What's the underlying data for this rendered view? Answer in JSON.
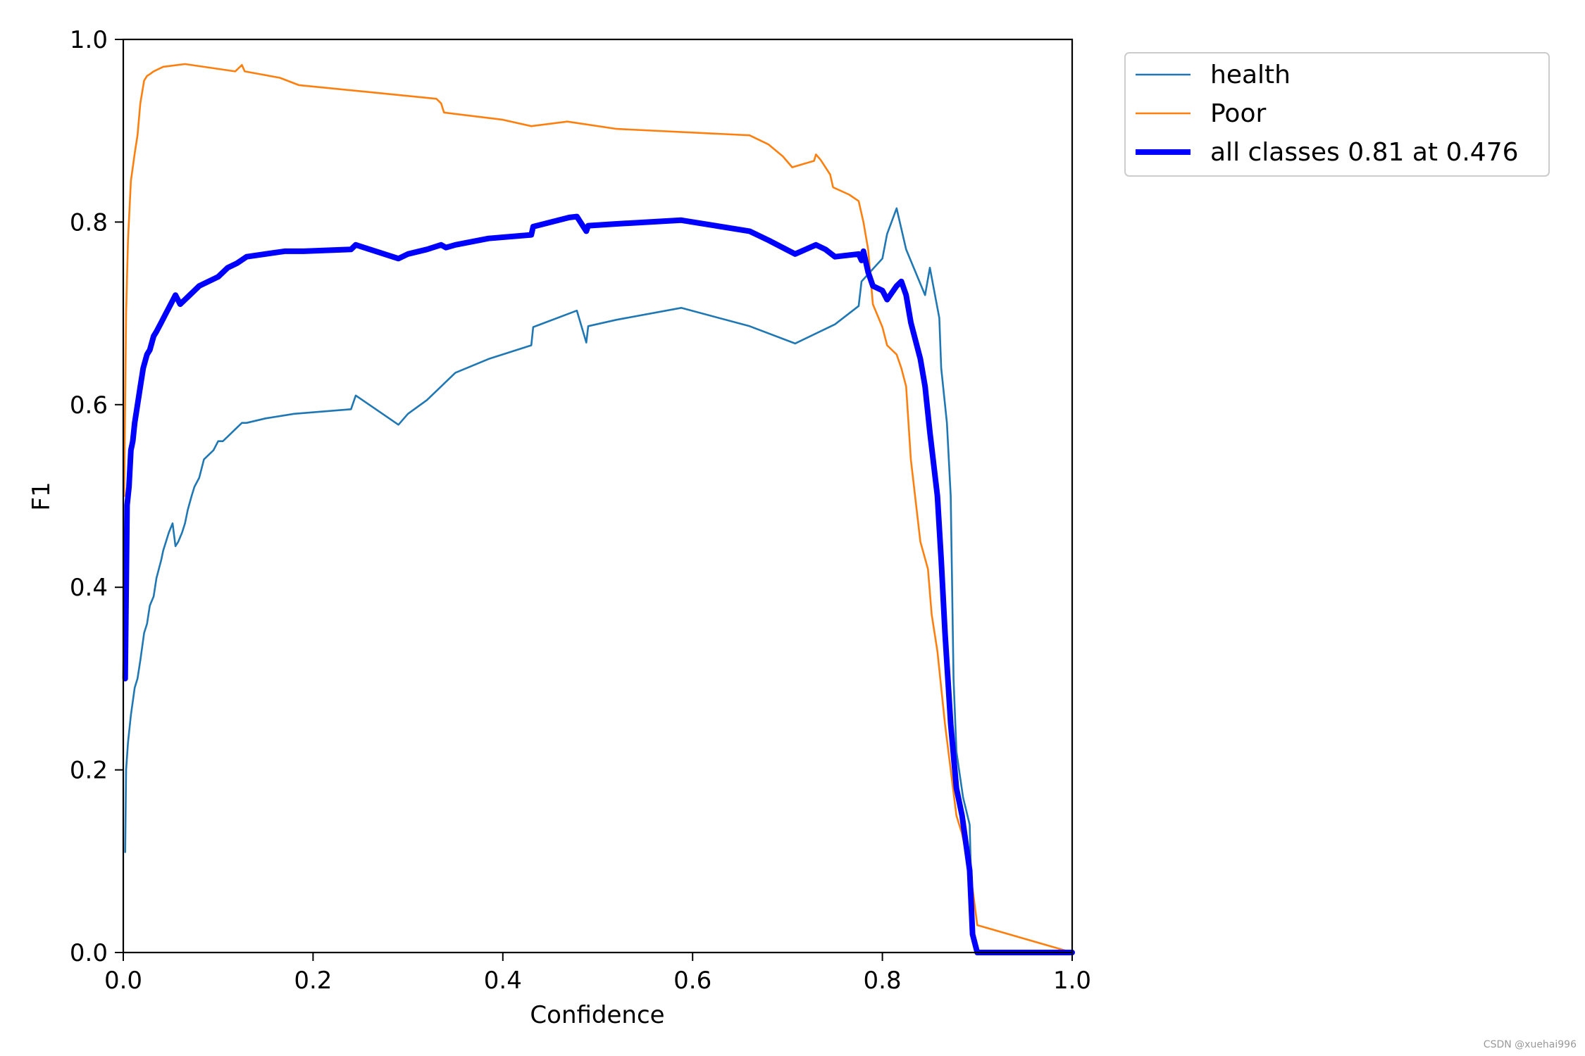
{
  "chart_data": {
    "type": "line",
    "title": "",
    "xlabel": "Confidence",
    "ylabel": "F1",
    "xlim": [
      0,
      1
    ],
    "ylim": [
      0,
      1
    ],
    "xticks": [
      "0.0",
      "0.2",
      "0.4",
      "0.6",
      "0.8",
      "1.0"
    ],
    "yticks": [
      "0.0",
      "0.2",
      "0.4",
      "0.6",
      "0.8",
      "1.0"
    ],
    "grid": false,
    "legend_position": "outside-top-right",
    "series": [
      {
        "name": "health",
        "color": "#1f77b4",
        "width": "thin",
        "x": [
          0.002,
          0.003,
          0.005,
          0.008,
          0.012,
          0.015,
          0.018,
          0.022,
          0.025,
          0.028,
          0.032,
          0.035,
          0.04,
          0.042,
          0.048,
          0.052,
          0.055,
          0.058,
          0.062,
          0.065,
          0.068,
          0.072,
          0.075,
          0.08,
          0.085,
          0.09,
          0.095,
          0.1,
          0.105,
          0.11,
          0.115,
          0.12,
          0.125,
          0.13,
          0.15,
          0.18,
          0.24,
          0.245,
          0.29,
          0.3,
          0.32,
          0.335,
          0.35,
          0.385,
          0.43,
          0.432,
          0.478,
          0.488,
          0.49,
          0.52,
          0.588,
          0.66,
          0.708,
          0.75,
          0.775,
          0.778,
          0.8,
          0.805,
          0.815,
          0.825,
          0.845,
          0.85,
          0.86,
          0.862,
          0.868,
          0.872,
          0.875,
          0.878,
          0.885,
          0.892,
          0.895,
          0.9,
          1.0
        ],
        "y": [
          0.11,
          0.2,
          0.23,
          0.26,
          0.29,
          0.3,
          0.32,
          0.35,
          0.36,
          0.38,
          0.39,
          0.41,
          0.43,
          0.44,
          0.46,
          0.47,
          0.445,
          0.45,
          0.46,
          0.47,
          0.485,
          0.5,
          0.51,
          0.52,
          0.54,
          0.545,
          0.55,
          0.56,
          0.56,
          0.565,
          0.57,
          0.575,
          0.58,
          0.58,
          0.585,
          0.59,
          0.595,
          0.61,
          0.578,
          0.59,
          0.605,
          0.62,
          0.635,
          0.65,
          0.665,
          0.685,
          0.703,
          0.668,
          0.686,
          0.693,
          0.706,
          0.686,
          0.667,
          0.688,
          0.708,
          0.735,
          0.76,
          0.787,
          0.815,
          0.77,
          0.72,
          0.75,
          0.695,
          0.64,
          0.58,
          0.5,
          0.3,
          0.22,
          0.17,
          0.14,
          0.02,
          0.0,
          0.0
        ]
      },
      {
        "name": "Poor",
        "color": "#ff7f0e",
        "width": "thin",
        "x": [
          0.001,
          0.003,
          0.005,
          0.008,
          0.012,
          0.015,
          0.018,
          0.022,
          0.025,
          0.028,
          0.032,
          0.038,
          0.042,
          0.065,
          0.118,
          0.125,
          0.128,
          0.165,
          0.185,
          0.33,
          0.335,
          0.338,
          0.4,
          0.43,
          0.468,
          0.52,
          0.66,
          0.68,
          0.695,
          0.705,
          0.728,
          0.73,
          0.735,
          0.745,
          0.748,
          0.765,
          0.775,
          0.78,
          0.785,
          0.79,
          0.8,
          0.805,
          0.815,
          0.82,
          0.825,
          0.83,
          0.84,
          0.848,
          0.852,
          0.858,
          0.862,
          0.866,
          0.872,
          0.878,
          0.884,
          0.89,
          0.895,
          0.9,
          1.0
        ],
        "y": [
          0.5,
          0.7,
          0.78,
          0.845,
          0.875,
          0.895,
          0.93,
          0.955,
          0.96,
          0.962,
          0.965,
          0.968,
          0.97,
          0.973,
          0.965,
          0.972,
          0.965,
          0.958,
          0.95,
          0.935,
          0.93,
          0.92,
          0.912,
          0.905,
          0.91,
          0.902,
          0.895,
          0.885,
          0.872,
          0.86,
          0.867,
          0.874,
          0.868,
          0.852,
          0.838,
          0.83,
          0.823,
          0.8,
          0.77,
          0.71,
          0.685,
          0.665,
          0.655,
          0.64,
          0.62,
          0.54,
          0.45,
          0.42,
          0.37,
          0.33,
          0.29,
          0.25,
          0.2,
          0.15,
          0.13,
          0.1,
          0.07,
          0.03,
          0.0
        ]
      },
      {
        "name": "all classes 0.81 at 0.476",
        "color": "#0000ff",
        "width": "thick",
        "x": [
          0.002,
          0.004,
          0.006,
          0.008,
          0.01,
          0.012,
          0.015,
          0.018,
          0.021,
          0.025,
          0.028,
          0.032,
          0.035,
          0.04,
          0.045,
          0.05,
          0.055,
          0.06,
          0.065,
          0.07,
          0.075,
          0.08,
          0.09,
          0.1,
          0.11,
          0.12,
          0.13,
          0.17,
          0.19,
          0.24,
          0.245,
          0.29,
          0.3,
          0.32,
          0.335,
          0.34,
          0.35,
          0.385,
          0.43,
          0.432,
          0.47,
          0.478,
          0.488,
          0.49,
          0.52,
          0.588,
          0.66,
          0.68,
          0.708,
          0.73,
          0.74,
          0.75,
          0.775,
          0.778,
          0.78,
          0.785,
          0.79,
          0.8,
          0.805,
          0.815,
          0.82,
          0.825,
          0.83,
          0.84,
          0.845,
          0.85,
          0.858,
          0.862,
          0.866,
          0.872,
          0.878,
          0.884,
          0.888,
          0.892,
          0.895,
          0.9,
          1.0
        ],
        "y": [
          0.3,
          0.49,
          0.51,
          0.55,
          0.56,
          0.58,
          0.6,
          0.62,
          0.64,
          0.655,
          0.66,
          0.675,
          0.68,
          0.69,
          0.7,
          0.71,
          0.72,
          0.71,
          0.715,
          0.72,
          0.725,
          0.73,
          0.735,
          0.74,
          0.75,
          0.755,
          0.762,
          0.768,
          0.768,
          0.77,
          0.775,
          0.76,
          0.765,
          0.77,
          0.775,
          0.772,
          0.775,
          0.782,
          0.786,
          0.795,
          0.805,
          0.806,
          0.79,
          0.796,
          0.798,
          0.802,
          0.79,
          0.78,
          0.765,
          0.775,
          0.77,
          0.762,
          0.765,
          0.758,
          0.768,
          0.745,
          0.73,
          0.725,
          0.715,
          0.73,
          0.735,
          0.72,
          0.69,
          0.65,
          0.62,
          0.57,
          0.5,
          0.43,
          0.35,
          0.25,
          0.18,
          0.15,
          0.12,
          0.09,
          0.02,
          0.0,
          0.0
        ]
      }
    ]
  },
  "footer": {
    "watermark": "CSDN @xuehai996"
  }
}
